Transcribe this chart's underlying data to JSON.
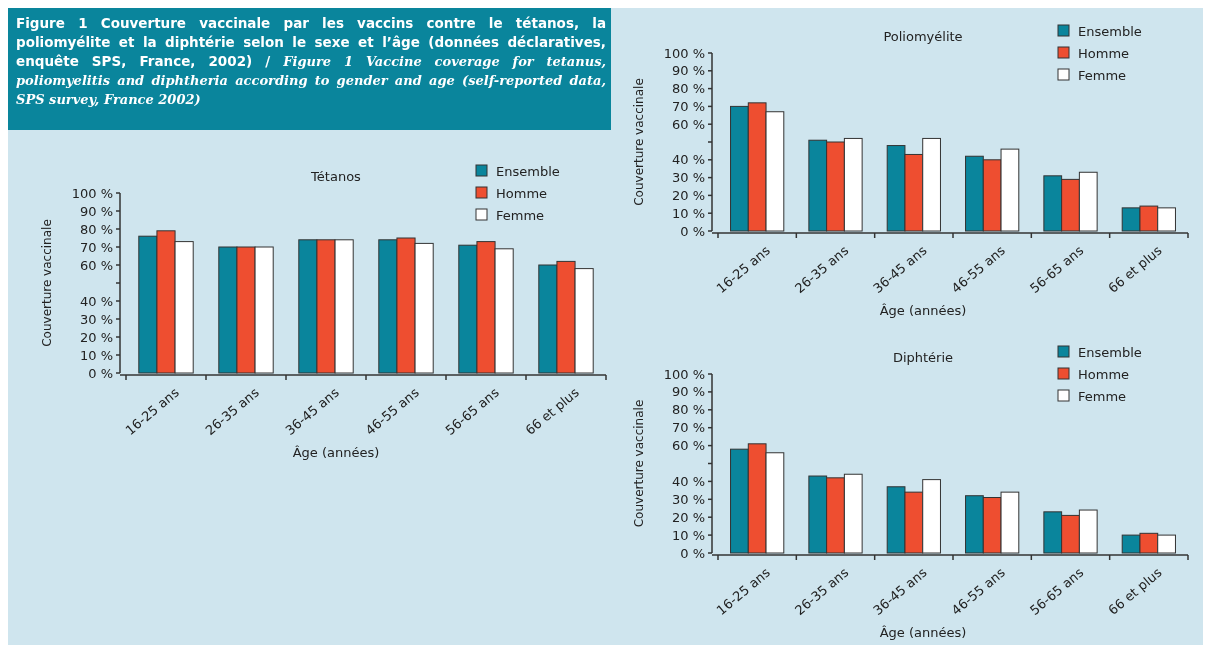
{
  "chart_data": [
    {
      "type": "bar",
      "title": "Tétanos",
      "xlabel": "Âge (années)",
      "ylabel": "Couverture vaccinale",
      "annotations": [
        "Figure 1 Couverture vaccinale par les vaccins contre le tétanos, la poliomyélite et la diphtérie selon le sexe et l’âge (données déclaratives, enquête SPS, France, 2002) /",
        "Figure 1 Vaccine coverage for tetanus, poliomyelitis and diphtheria according to gender and age (self-reported data, SPS survey, France 2002)"
      ],
      "categories": [
        "16-25 ans",
        "26-35 ans",
        "36-45 ans",
        "46-55 ans",
        "56-65 ans",
        "66 et plus"
      ],
      "series": [
        {
          "name": "Ensemble",
          "color": "#0a859c",
          "values": [
            76,
            70,
            74,
            74,
            71,
            60
          ]
        },
        {
          "name": "Homme",
          "color": "#ee4e30",
          "values": [
            79,
            70,
            74,
            75,
            73,
            62
          ]
        },
        {
          "name": "Femme",
          "color": "#ffffff",
          "values": [
            73,
            70,
            74,
            72,
            69,
            58
          ]
        }
      ],
      "ylim": [
        0,
        100
      ],
      "yticks": [
        {
          "value": 0,
          "label": "0 %"
        },
        {
          "value": 10,
          "label": "10 %"
        },
        {
          "value": 20,
          "label": "20 %"
        },
        {
          "value": 30,
          "label": "30 %"
        },
        {
          "value": 40,
          "label": "40 %"
        },
        {
          "value": 50,
          "label": null
        },
        {
          "value": 60,
          "label": "60 %"
        },
        {
          "value": 70,
          "label": "70 %"
        },
        {
          "value": 80,
          "label": "80 %"
        },
        {
          "value": 90,
          "label": "90 %"
        },
        {
          "value": 100,
          "label": "100 %"
        }
      ],
      "grid": false,
      "legend": "top right"
    },
    {
      "type": "bar",
      "title": "Poliomyélite",
      "xlabel": "Âge (années)",
      "ylabel": "Couverture vaccinale",
      "categories": [
        "16-25 ans",
        "26-35 ans",
        "36-45 ans",
        "46-55 ans",
        "56-65 ans",
        "66 et plus"
      ],
      "series": [
        {
          "name": "Ensemble",
          "color": "#0a859c",
          "values": [
            70,
            51,
            48,
            42,
            31,
            13
          ]
        },
        {
          "name": "Homme",
          "color": "#ee4e30",
          "values": [
            72,
            50,
            43,
            40,
            29,
            14
          ]
        },
        {
          "name": "Femme",
          "color": "#ffffff",
          "values": [
            67,
            52,
            52,
            46,
            33,
            13
          ]
        }
      ],
      "ylim": [
        0,
        100
      ],
      "yticks": [
        {
          "value": 0,
          "label": "0 %"
        },
        {
          "value": 10,
          "label": "10 %"
        },
        {
          "value": 20,
          "label": "20 %"
        },
        {
          "value": 30,
          "label": "30 %"
        },
        {
          "value": 40,
          "label": "40 %"
        },
        {
          "value": 50,
          "label": null
        },
        {
          "value": 60,
          "label": "60 %"
        },
        {
          "value": 70,
          "label": "70 %"
        },
        {
          "value": 80,
          "label": "80 %"
        },
        {
          "value": 90,
          "label": "90 %"
        },
        {
          "value": 100,
          "label": "100 %"
        }
      ],
      "grid": false,
      "legend": "top right"
    },
    {
      "type": "bar",
      "title": "Diphtérie",
      "xlabel": "Âge (années)",
      "ylabel": "Couverture vaccinale",
      "categories": [
        "16-25 ans",
        "26-35 ans",
        "36-45 ans",
        "46-55 ans",
        "56-65 ans",
        "66 et plus"
      ],
      "series": [
        {
          "name": "Ensemble",
          "color": "#0a859c",
          "values": [
            58,
            43,
            37,
            32,
            23,
            10
          ]
        },
        {
          "name": "Homme",
          "color": "#ee4e30",
          "values": [
            61,
            42,
            34,
            31,
            21,
            11
          ]
        },
        {
          "name": "Femme",
          "color": "#ffffff",
          "values": [
            56,
            44,
            41,
            34,
            24,
            10
          ]
        }
      ],
      "ylim": [
        0,
        100
      ],
      "yticks": [
        {
          "value": 0,
          "label": "0 %"
        },
        {
          "value": 10,
          "label": "10 %"
        },
        {
          "value": 20,
          "label": "20 %"
        },
        {
          "value": 30,
          "label": "30 %"
        },
        {
          "value": 40,
          "label": "40 %"
        },
        {
          "value": 50,
          "label": null
        },
        {
          "value": 60,
          "label": "60 %"
        },
        {
          "value": 70,
          "label": "70 %"
        },
        {
          "value": 80,
          "label": "80 %"
        },
        {
          "value": 90,
          "label": "90 %"
        },
        {
          "value": 100,
          "label": "100 %"
        }
      ],
      "grid": false,
      "legend": "top right"
    }
  ]
}
